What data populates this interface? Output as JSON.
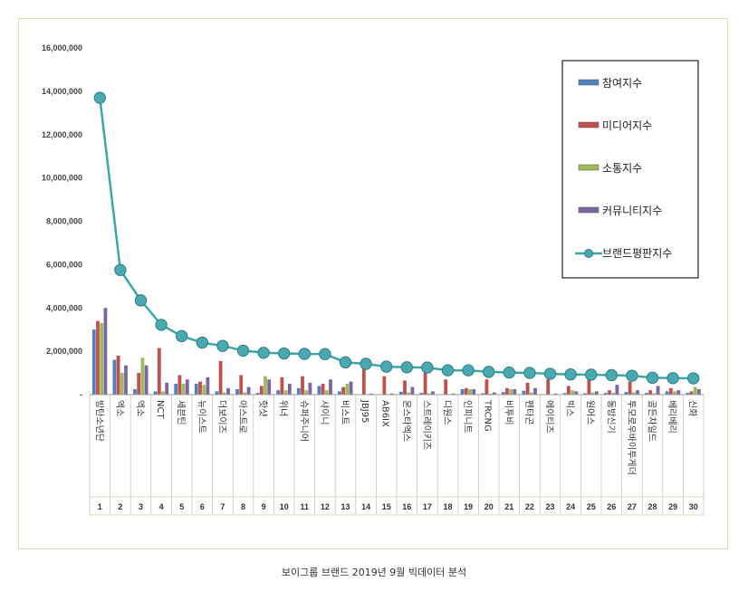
{
  "caption": "보이그룹 브랜드 2019년 9월 빅데이터 분석",
  "chart_data": {
    "type": "bar",
    "categories": [
      "방탄소년단",
      "엑소",
      "엑소",
      "NCT",
      "세븐틴",
      "뉴이스트",
      "더보이즈",
      "아스트로",
      "핫샷",
      "위너",
      "슈퍼주니어",
      "샤이니",
      "비스트",
      "JBJ95",
      "AB6IX",
      "몬스타엑스",
      "스트레이키즈",
      "디원스",
      "인피니트",
      "TRCNG",
      "비투비",
      "펜타곤",
      "에이티즈",
      "빅스",
      "원어스",
      "동방신기",
      "투모로우바이투게더",
      "골든차일드",
      "베리베리",
      "신화"
    ],
    "ranks": [
      "1",
      "2",
      "3",
      "4",
      "5",
      "6",
      "7",
      "8",
      "9",
      "10",
      "11",
      "12",
      "13",
      "14",
      "15",
      "16",
      "17",
      "18",
      "19",
      "20",
      "21",
      "22",
      "23",
      "24",
      "25",
      "26",
      "27",
      "28",
      "29",
      "30"
    ],
    "series": [
      {
        "name": "참여지수",
        "kind": "bar",
        "color": "#4f81bd",
        "values": [
          3000000,
          1600000,
          250000,
          150000,
          500000,
          500000,
          150000,
          250000,
          80000,
          200000,
          300000,
          400000,
          150000,
          20000,
          20000,
          130000,
          80000,
          20000,
          250000,
          60000,
          120000,
          180000,
          20000,
          70000,
          60000,
          80000,
          120000,
          80000,
          150000,
          80000
        ]
      },
      {
        "name": "미디어지수",
        "kind": "bar",
        "color": "#c0504d",
        "values": [
          3400000,
          1800000,
          1000000,
          2150000,
          900000,
          600000,
          1550000,
          900000,
          400000,
          800000,
          850000,
          500000,
          350000,
          1200000,
          850000,
          650000,
          1050000,
          700000,
          300000,
          700000,
          300000,
          550000,
          700000,
          400000,
          700000,
          200000,
          600000,
          200000,
          300000,
          150000
        ]
      },
      {
        "name": "소통지수",
        "kind": "bar",
        "color": "#9bbb59",
        "values": [
          3300000,
          1000000,
          1700000,
          150000,
          500000,
          450000,
          100000,
          100000,
          850000,
          200000,
          200000,
          200000,
          500000,
          20000,
          20000,
          100000,
          60000,
          20000,
          250000,
          40000,
          250000,
          100000,
          20000,
          200000,
          100000,
          80000,
          100000,
          60000,
          150000,
          350000
        ]
      },
      {
        "name": "커뮤니티지수",
        "kind": "bar",
        "color": "#8064a2",
        "values": [
          4000000,
          1350000,
          1350000,
          550000,
          700000,
          800000,
          300000,
          350000,
          700000,
          500000,
          550000,
          700000,
          600000,
          50000,
          50000,
          350000,
          150000,
          50000,
          250000,
          100000,
          250000,
          300000,
          50000,
          150000,
          150000,
          450000,
          200000,
          400000,
          200000,
          250000
        ]
      },
      {
        "name": "브랜드평판지수",
        "kind": "line",
        "color": "#3ba8a8",
        "values": [
          13700000,
          5750000,
          4350000,
          3220000,
          2700000,
          2400000,
          2250000,
          2030000,
          1930000,
          1900000,
          1880000,
          1870000,
          1490000,
          1420000,
          1290000,
          1260000,
          1250000,
          1120000,
          1120000,
          1050000,
          1020000,
          1000000,
          960000,
          930000,
          920000,
          900000,
          870000,
          780000,
          760000,
          750000
        ]
      }
    ],
    "yticks": [
      "16,000,000",
      "14,000,000",
      "12,000,000",
      "10,000,000",
      "8,000,000",
      "6,000,000",
      "4,000,000",
      "2,000,000",
      "-"
    ],
    "ylim": [
      0,
      16000000
    ],
    "legend_position": "top-right",
    "grid": false
  },
  "colors": {
    "frame_border": "#e6dcb4",
    "axis": "#999999",
    "marker": "#4aa9b0"
  }
}
